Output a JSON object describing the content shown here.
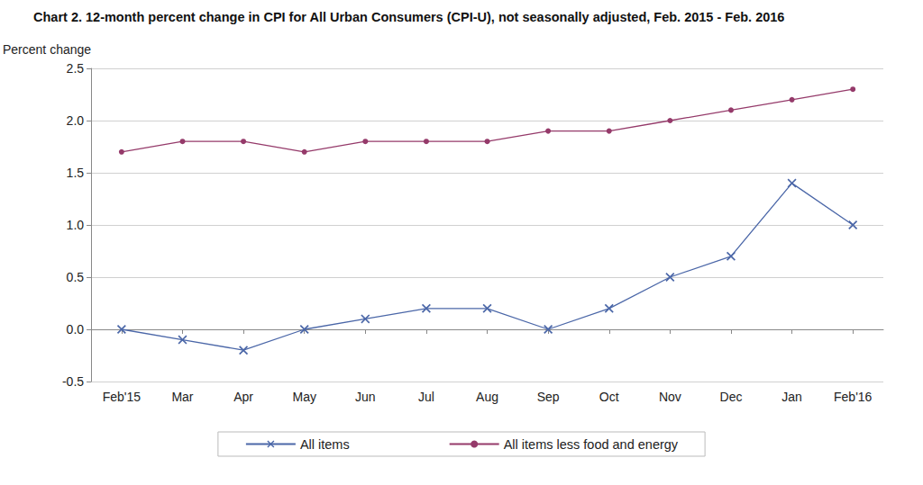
{
  "chart_data": {
    "type": "line",
    "title": "Chart 2. 12-month percent change in CPI for All Urban Consumers (CPI-U), not seasonally adjusted, Feb. 2015 - Feb. 2016",
    "y_label": "Percent change",
    "categories": [
      "Feb'15",
      "Mar",
      "Apr",
      "May",
      "Jun",
      "Jul",
      "Aug",
      "Sep",
      "Oct",
      "Nov",
      "Dec",
      "Jan",
      "Feb'16"
    ],
    "series": [
      {
        "name": "All items",
        "color": "#4b67a8",
        "marker": "x",
        "values": [
          0.0,
          -0.1,
          -0.2,
          0.0,
          0.1,
          0.2,
          0.2,
          0.0,
          0.2,
          0.5,
          0.7,
          1.4,
          1.0
        ]
      },
      {
        "name": "All items less food and energy",
        "color": "#953a6a",
        "marker": "circle",
        "values": [
          1.7,
          1.8,
          1.8,
          1.7,
          1.8,
          1.8,
          1.8,
          1.9,
          1.9,
          2.0,
          2.1,
          2.2,
          2.3
        ]
      }
    ],
    "ylim": [
      -0.5,
      2.5
    ],
    "yticks": [
      -0.5,
      {
        "value": 0,
        "label": "0.0"
      },
      0.5,
      {
        "value": 1,
        "label": "1.0"
      },
      1.5,
      {
        "value": 2,
        "label": "2.0"
      },
      2.5
    ],
    "grid": true,
    "legend": "bottom"
  }
}
